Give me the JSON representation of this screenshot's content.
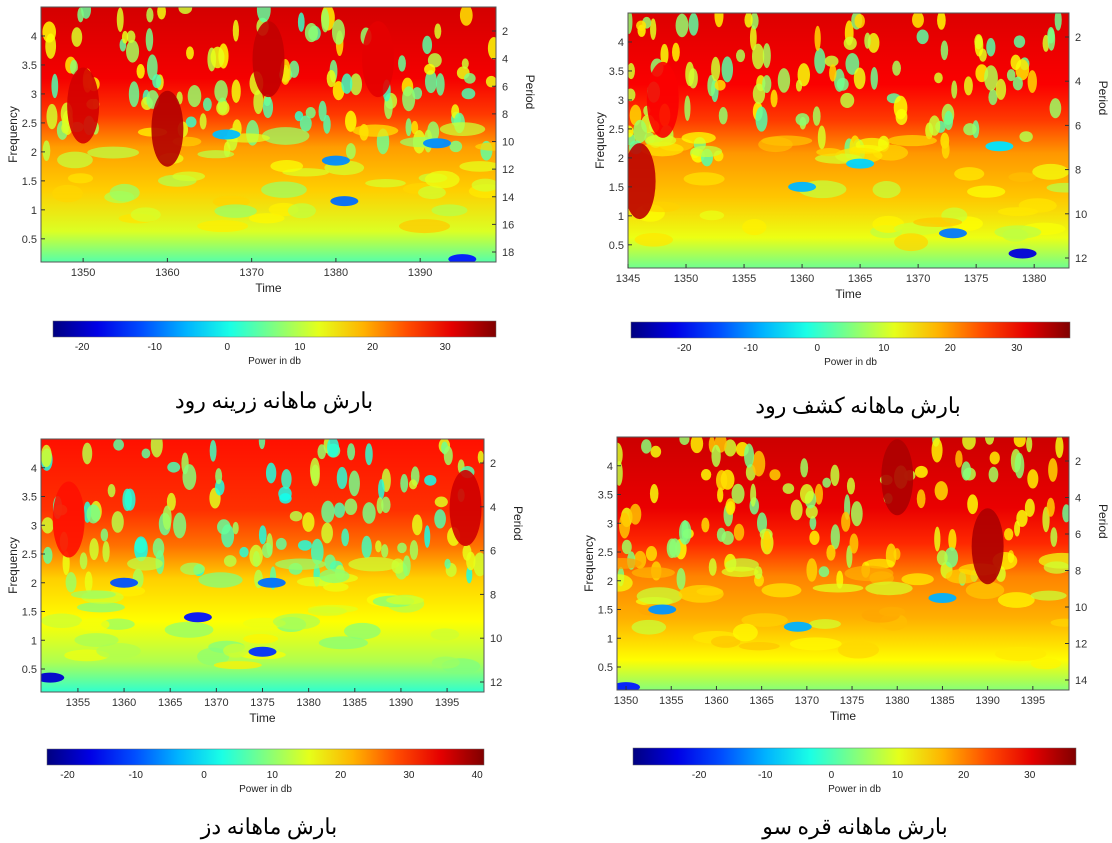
{
  "chart_data": [
    {
      "type": "heatmap",
      "caption": "بارش ماهانه   زرینه رود",
      "xlabel": "Time",
      "ylabel": "Frequency",
      "y2label": "Period",
      "xlim": [
        1345,
        1399
      ],
      "ylim": [
        0.1,
        4.5
      ],
      "x_ticks": [
        "1350",
        "1360",
        "1370",
        "1380",
        "1390"
      ],
      "y_ticks": [
        "0.5",
        "1",
        "1.5",
        "2",
        "2.5",
        "3",
        "3.5",
        "4"
      ],
      "period_ticks": [
        "2",
        "4",
        "6",
        "8",
        "10",
        "12",
        "14",
        "16",
        "18"
      ],
      "colorbar": {
        "label": "Power in db",
        "ticks": [
          "-20",
          "-10",
          "0",
          "10",
          "20",
          "30"
        ],
        "range": [
          -24,
          37
        ]
      },
      "hotspots": [
        {
          "x": 1360,
          "y": 2.4,
          "power": 34
        },
        {
          "x": 1350,
          "y": 2.8,
          "power": 32
        },
        {
          "x": 1372,
          "y": 3.6,
          "power": 33
        },
        {
          "x": 1385,
          "y": 3.6,
          "power": 31
        }
      ],
      "coldspots": [
        {
          "x": 1395,
          "y": 0.15,
          "power": -15
        },
        {
          "x": 1381,
          "y": 1.15,
          "power": -10
        },
        {
          "x": 1380,
          "y": 1.85,
          "power": -8
        },
        {
          "x": 1392,
          "y": 2.15,
          "power": -8
        },
        {
          "x": 1367,
          "y": 2.3,
          "power": -5
        }
      ]
    },
    {
      "type": "heatmap",
      "caption": "بارش ماهانه کشف رود",
      "xlabel": "Time",
      "ylabel": "Frequency",
      "y2label": "Period",
      "xlim": [
        1345,
        1383
      ],
      "ylim": [
        0.1,
        4.5
      ],
      "x_ticks": [
        "1345",
        "1350",
        "1355",
        "1360",
        "1365",
        "1370",
        "1375",
        "1380"
      ],
      "y_ticks": [
        "0.5",
        "1",
        "1.5",
        "2",
        "2.5",
        "3",
        "3.5",
        "4"
      ],
      "period_ticks": [
        "2",
        "4",
        "6",
        "8",
        "10",
        "12"
      ],
      "colorbar": {
        "label": "Power in db",
        "ticks": [
          "-20",
          "-10",
          "0",
          "10",
          "20",
          "30"
        ],
        "range": [
          -28,
          38
        ]
      },
      "hotspots": [
        {
          "x": 1346,
          "y": 1.6,
          "power": 34
        },
        {
          "x": 1348,
          "y": 3.0,
          "power": 30
        }
      ],
      "coldspots": [
        {
          "x": 1379,
          "y": 0.35,
          "power": -22
        },
        {
          "x": 1373,
          "y": 0.7,
          "power": -12
        },
        {
          "x": 1360,
          "y": 1.5,
          "power": -8
        },
        {
          "x": 1365,
          "y": 1.9,
          "power": -6
        },
        {
          "x": 1377,
          "y": 2.2,
          "power": -5
        }
      ]
    },
    {
      "type": "heatmap",
      "caption": "بارش ماهانه دز",
      "xlabel": "Time",
      "ylabel": "Frequency",
      "y2label": "Period",
      "xlim": [
        1351,
        1399
      ],
      "ylim": [
        0.1,
        4.5
      ],
      "x_ticks": [
        "1355",
        "1360",
        "1365",
        "1370",
        "1375",
        "1380",
        "1385",
        "1390",
        "1395"
      ],
      "y_ticks": [
        "0.5",
        "1",
        "1.5",
        "2",
        "2.5",
        "3",
        "3.5",
        "4"
      ],
      "period_ticks": [
        "2",
        "4",
        "6",
        "8",
        "10",
        "12"
      ],
      "colorbar": {
        "label": "Power in db",
        "ticks": [
          "-20",
          "-10",
          "0",
          "10",
          "20",
          "30",
          "40"
        ],
        "range": [
          -23,
          41
        ]
      },
      "hotspots": [
        {
          "x": 1397,
          "y": 3.3,
          "power": 36
        },
        {
          "x": 1354,
          "y": 3.1,
          "power": 32
        }
      ],
      "coldspots": [
        {
          "x": 1352,
          "y": 0.35,
          "power": -18
        },
        {
          "x": 1375,
          "y": 0.8,
          "power": -12
        },
        {
          "x": 1368,
          "y": 1.4,
          "power": -14
        },
        {
          "x": 1360,
          "y": 2.0,
          "power": -10
        },
        {
          "x": 1376,
          "y": 2.0,
          "power": -8
        }
      ]
    },
    {
      "type": "heatmap",
      "caption": "بارش ماهانه   قره سو",
      "xlabel": "Time",
      "ylabel": "Frequency",
      "y2label": "Period",
      "xlim": [
        1349,
        1399
      ],
      "ylim": [
        0.1,
        4.5
      ],
      "x_ticks": [
        "1350",
        "1355",
        "1360",
        "1365",
        "1370",
        "1375",
        "1380",
        "1385",
        "1390",
        "1395"
      ],
      "y_ticks": [
        "0.5",
        "1",
        "1.5",
        "2",
        "2.5",
        "3",
        "3.5",
        "4"
      ],
      "period_ticks": [
        "2",
        "4",
        "6",
        "8",
        "10",
        "12",
        "14"
      ],
      "colorbar": {
        "label": "Power in db",
        "ticks": [
          "-20",
          "-10",
          "0",
          "10",
          "20",
          "30"
        ],
        "range": [
          -30,
          37
        ]
      },
      "hotspots": [
        {
          "x": 1390,
          "y": 2.6,
          "power": 34
        },
        {
          "x": 1380,
          "y": 3.8,
          "power": 34
        }
      ],
      "coldspots": [
        {
          "x": 1350,
          "y": 0.15,
          "power": -20
        },
        {
          "x": 1354,
          "y": 1.5,
          "power": -12
        },
        {
          "x": 1369,
          "y": 1.2,
          "power": -10
        },
        {
          "x": 1385,
          "y": 1.7,
          "power": -10
        }
      ]
    }
  ]
}
